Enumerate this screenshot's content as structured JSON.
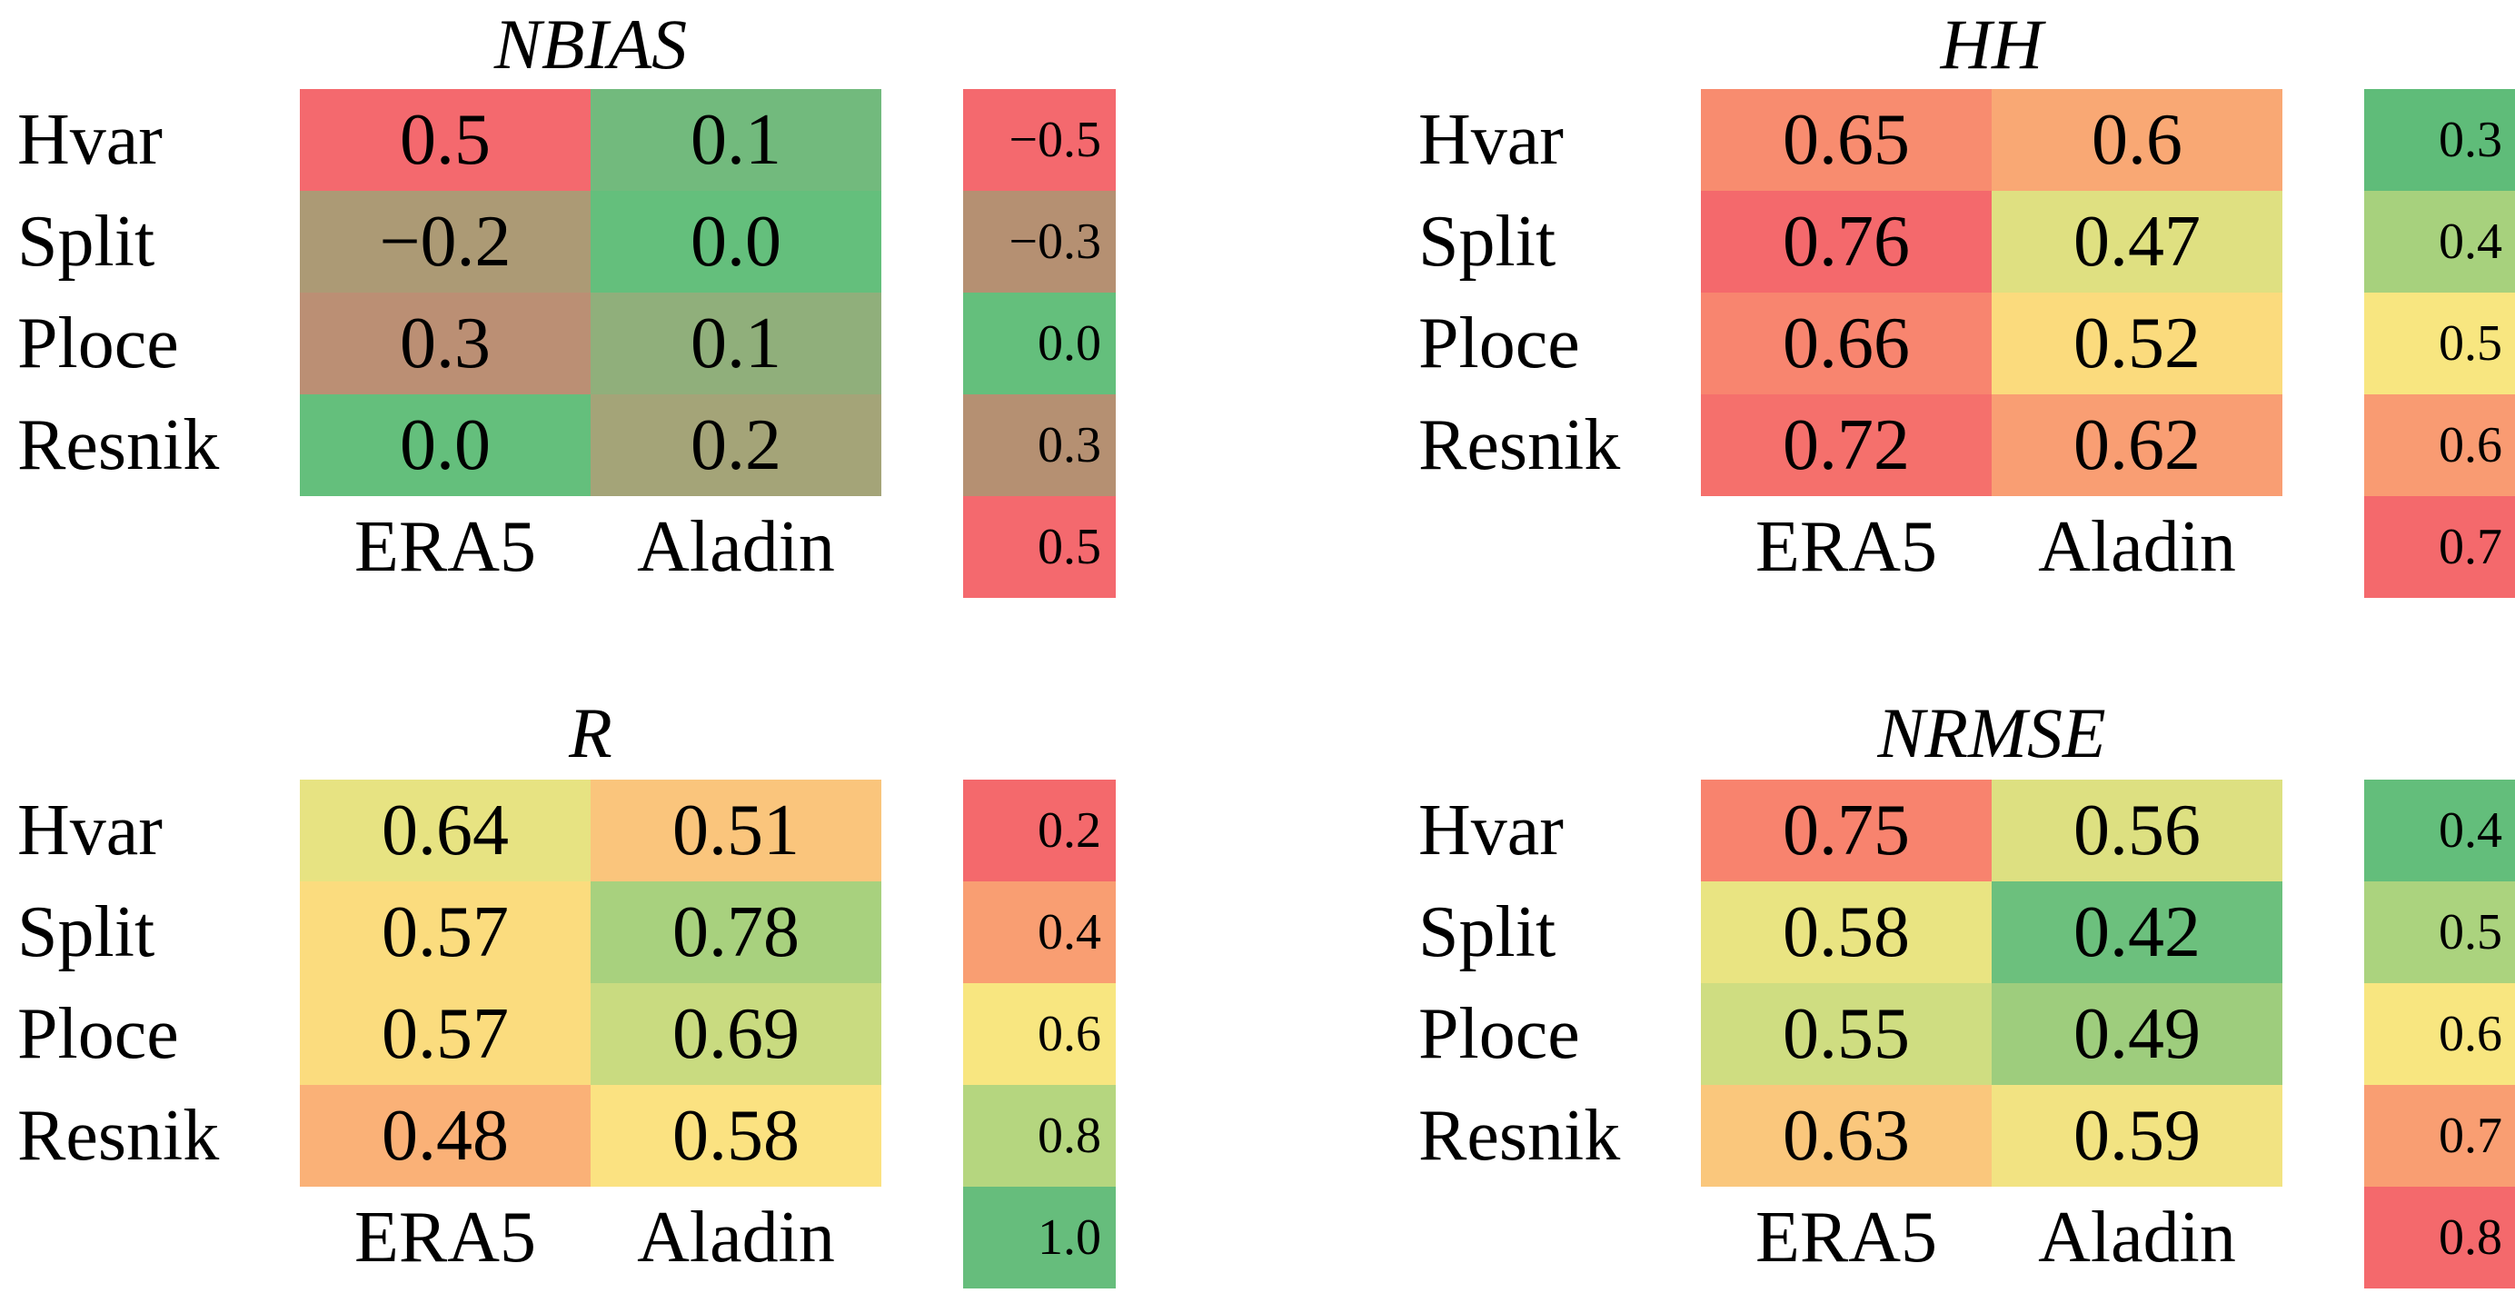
{
  "figure": {
    "background": "#ffffff"
  },
  "panels": [
    {
      "id": "nbias",
      "title": "NBIAS",
      "row_labels": [
        "Hvar",
        "Split",
        "Ploce",
        "Resnik"
      ],
      "col_labels": [
        "ERA5",
        "Aladin"
      ],
      "cells": [
        {
          "value": "0.5",
          "color": "#F4696E"
        },
        {
          "value": "0.1",
          "color": "#72BA7D"
        },
        {
          "value": "−0.2",
          "color": "#AC9A75"
        },
        {
          "value": "0.0",
          "color": "#64BF7C"
        },
        {
          "value": "0.3",
          "color": "#BB8F74"
        },
        {
          "value": "0.1",
          "color": "#90AF7B"
        },
        {
          "value": "0.0",
          "color": "#64BF7C"
        },
        {
          "value": "0.2",
          "color": "#A4A478"
        }
      ],
      "colorbar": [
        {
          "label": "−0.5",
          "color": "#F4696E"
        },
        {
          "label": "−0.3",
          "color": "#B59072"
        },
        {
          "label": "0.0",
          "color": "#64BF7C"
        },
        {
          "label": "0.3",
          "color": "#B59072"
        },
        {
          "label": "0.5",
          "color": "#F4696E"
        }
      ]
    },
    {
      "id": "hh",
      "title": "HH",
      "row_labels": [
        "Hvar",
        "Split",
        "Ploce",
        "Resnik"
      ],
      "col_labels": [
        "ERA5",
        "Aladin"
      ],
      "cells": [
        {
          "value": "0.65",
          "color": "#F88C6F"
        },
        {
          "value": "0.6",
          "color": "#F9A874"
        },
        {
          "value": "0.76",
          "color": "#F4696C"
        },
        {
          "value": "0.47",
          "color": "#DFE081"
        },
        {
          "value": "0.66",
          "color": "#F8856F"
        },
        {
          "value": "0.52",
          "color": "#FBDB7D"
        },
        {
          "value": "0.72",
          "color": "#F5706C"
        },
        {
          "value": "0.62",
          "color": "#F99E73"
        }
      ],
      "colorbar": [
        {
          "label": "0.3",
          "color": "#5FBC79"
        },
        {
          "label": "0.4",
          "color": "#A7D17D"
        },
        {
          "label": "0.5",
          "color": "#F8E680"
        },
        {
          "label": "0.6",
          "color": "#F99B72"
        },
        {
          "label": "0.7",
          "color": "#F4696C"
        }
      ]
    },
    {
      "id": "r",
      "title": "R",
      "row_labels": [
        "Hvar",
        "Split",
        "Ploce",
        "Resnik"
      ],
      "col_labels": [
        "ERA5",
        "Aladin"
      ],
      "cells": [
        {
          "value": "0.64",
          "color": "#E7E382"
        },
        {
          "value": "0.51",
          "color": "#FAC57C"
        },
        {
          "value": "0.57",
          "color": "#FBDC7E"
        },
        {
          "value": "0.78",
          "color": "#A8D17E"
        },
        {
          "value": "0.57",
          "color": "#FBDC7E"
        },
        {
          "value": "0.69",
          "color": "#C9DB80"
        },
        {
          "value": "0.48",
          "color": "#FAB177"
        },
        {
          "value": "0.58",
          "color": "#FBE281"
        }
      ],
      "colorbar": [
        {
          "label": "0.2",
          "color": "#F4696C"
        },
        {
          "label": "0.4",
          "color": "#F99E72"
        },
        {
          "label": "0.6",
          "color": "#F8E680"
        },
        {
          "label": "0.8",
          "color": "#B5D67F"
        },
        {
          "label": "1.0",
          "color": "#66BD7C"
        }
      ]
    },
    {
      "id": "nrmse",
      "title": "NRMSE",
      "row_labels": [
        "Hvar",
        "Split",
        "Ploce",
        "Resnik"
      ],
      "col_labels": [
        "ERA5",
        "Aladin"
      ],
      "cells": [
        {
          "value": "0.75",
          "color": "#F8836E"
        },
        {
          "value": "0.56",
          "color": "#DDE081"
        },
        {
          "value": "0.58",
          "color": "#E9E482"
        },
        {
          "value": "0.42",
          "color": "#6CC07D"
        },
        {
          "value": "0.55",
          "color": "#CFDD81"
        },
        {
          "value": "0.49",
          "color": "#9ECD7D"
        },
        {
          "value": "0.63",
          "color": "#FAC77C"
        },
        {
          "value": "0.59",
          "color": "#F2E382"
        }
      ],
      "colorbar": [
        {
          "label": "0.4",
          "color": "#63BE7B"
        },
        {
          "label": "0.5",
          "color": "#ABD37E"
        },
        {
          "label": "0.6",
          "color": "#F8E680"
        },
        {
          "label": "0.7",
          "color": "#F99E72"
        },
        {
          "label": "0.8",
          "color": "#F4696C"
        }
      ]
    }
  ],
  "chart_data": [
    {
      "type": "heatmap",
      "title": "NBIAS",
      "rows": [
        "Hvar",
        "Split",
        "Ploce",
        "Resnik"
      ],
      "columns": [
        "ERA5",
        "Aladin"
      ],
      "values": [
        [
          0.5,
          0.1
        ],
        [
          -0.2,
          0.0
        ],
        [
          0.3,
          0.1
        ],
        [
          0.0,
          0.2
        ]
      ],
      "colorbar_ticks": [
        -0.5,
        -0.3,
        0.0,
        0.3,
        0.5
      ],
      "colormap": "diverging: green at 0, brown mid, red at ±0.5",
      "legend_position": "right"
    },
    {
      "type": "heatmap",
      "title": "HH",
      "rows": [
        "Hvar",
        "Split",
        "Ploce",
        "Resnik"
      ],
      "columns": [
        "ERA5",
        "Aladin"
      ],
      "values": [
        [
          0.65,
          0.6
        ],
        [
          0.76,
          0.47
        ],
        [
          0.66,
          0.52
        ],
        [
          0.72,
          0.62
        ]
      ],
      "colorbar_ticks": [
        0.3,
        0.4,
        0.5,
        0.6,
        0.7
      ],
      "colormap": "green (low) → yellow → red (high)",
      "legend_position": "right"
    },
    {
      "type": "heatmap",
      "title": "R",
      "rows": [
        "Hvar",
        "Split",
        "Ploce",
        "Resnik"
      ],
      "columns": [
        "ERA5",
        "Aladin"
      ],
      "values": [
        [
          0.64,
          0.51
        ],
        [
          0.57,
          0.78
        ],
        [
          0.57,
          0.69
        ],
        [
          0.48,
          0.58
        ]
      ],
      "colorbar_ticks": [
        0.2,
        0.4,
        0.6,
        0.8,
        1.0
      ],
      "colormap": "red (low) → yellow → green (high)",
      "legend_position": "right"
    },
    {
      "type": "heatmap",
      "title": "NRMSE",
      "rows": [
        "Hvar",
        "Split",
        "Ploce",
        "Resnik"
      ],
      "columns": [
        "ERA5",
        "Aladin"
      ],
      "values": [
        [
          0.75,
          0.56
        ],
        [
          0.58,
          0.42
        ],
        [
          0.55,
          0.49
        ],
        [
          0.63,
          0.59
        ]
      ],
      "colorbar_ticks": [
        0.4,
        0.5,
        0.6,
        0.7,
        0.8
      ],
      "colormap": "green (low) → yellow → red (high)",
      "legend_position": "right"
    }
  ]
}
